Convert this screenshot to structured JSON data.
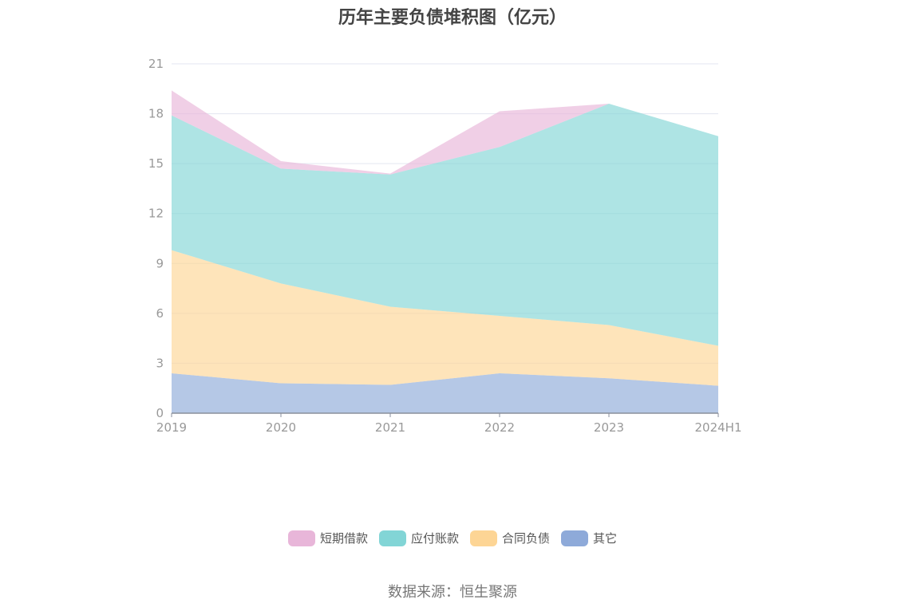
{
  "chart_data": {
    "type": "area",
    "stacked": true,
    "title": "历年主要负债堆积图（亿元）",
    "categories": [
      "2019",
      "2020",
      "2021",
      "2022",
      "2023",
      "2024H1"
    ],
    "ylim": [
      0,
      21
    ],
    "yticks": [
      "0",
      "3",
      "6",
      "9",
      "12",
      "15",
      "18",
      "21"
    ],
    "grid": true,
    "legend_position": "bottom",
    "series": [
      {
        "name": "其它",
        "color": "#8eaad9",
        "values": [
          2.4,
          1.8,
          1.7,
          2.4,
          2.1,
          1.65
        ]
      },
      {
        "name": "合同负债",
        "color": "#fdd595",
        "values": [
          7.4,
          6.0,
          4.7,
          3.45,
          3.2,
          2.4
        ]
      },
      {
        "name": "应付账款",
        "color": "#82d5d6",
        "values": [
          8.1,
          6.9,
          7.95,
          10.15,
          13.3,
          12.6
        ]
      },
      {
        "name": "短期借款",
        "color": "#e8b6d9",
        "values": [
          1.5,
          0.45,
          0.05,
          2.15,
          0.0,
          0.0
        ]
      }
    ],
    "legend_order": [
      "短期借款",
      "应付账款",
      "合同负债",
      "其它"
    ]
  },
  "source": "数据来源：恒生聚源"
}
